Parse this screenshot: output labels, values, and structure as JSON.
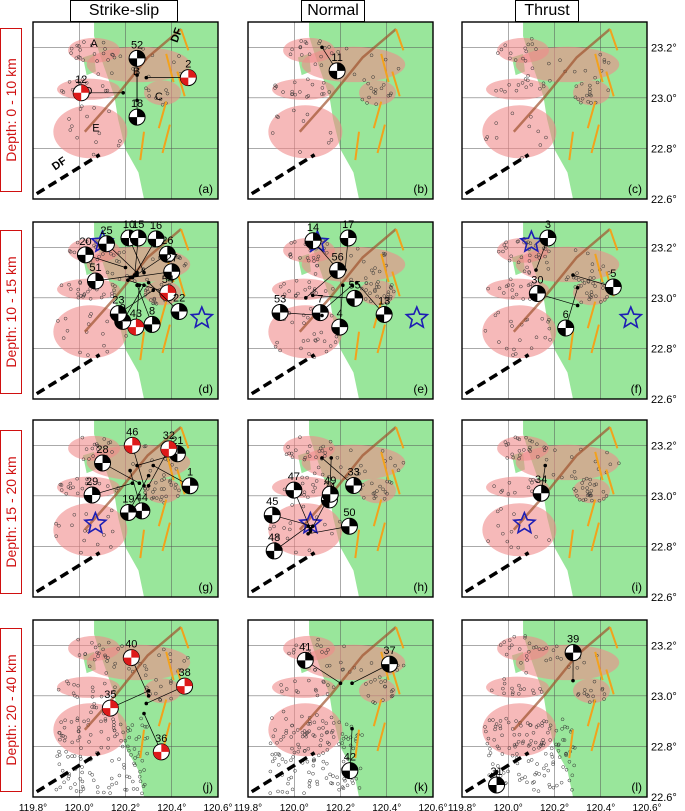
{
  "column_titles": [
    "Strike-slip",
    "Normal",
    "Thrust"
  ],
  "row_titles": [
    "Depth: 0 - 10 km",
    "Depth: 10 - 15 km",
    "Depth: 15 - 20 km",
    "Depth: 20 - 40 km"
  ],
  "panel_labels": [
    "(a)",
    "(b)",
    "(c)",
    "(d)",
    "(e)",
    "(f)",
    "(g)",
    "(h)",
    "(i)",
    "(j)",
    "(k)",
    "(l)"
  ],
  "lon_ticks": [
    "119.8°",
    "120.0°",
    "120.2°",
    "120.4°",
    "120.6°"
  ],
  "lat_ticks": [
    "23.2°",
    "23.0°",
    "22.8°",
    "22.6°"
  ],
  "fault_labels": [
    "DF",
    "DF"
  ],
  "zone_labels": [
    "A",
    "B",
    "C",
    "D",
    "E"
  ],
  "colors": {
    "land": "#99e69b",
    "sea": "#ffffff",
    "zone_fill": "#f08a8a",
    "fault_orange": "#f2a21c",
    "fault_brown": "#a0522d",
    "star": "#1e1eb4",
    "beachball_red": "#dd1a1a",
    "beachball_black": "#000000",
    "row_title_red": "#d01010"
  },
  "star_icon": "star-icon",
  "mechanisms": [
    {
      "panel": 0,
      "id": "2",
      "type": "red",
      "lon": 120.29,
      "lat": 23.08
    },
    {
      "panel": 0,
      "id": "18",
      "type": "black",
      "lon": 120.25,
      "lat": 23.09
    },
    {
      "panel": 0,
      "id": "12",
      "type": "red",
      "lon": 120.19,
      "lat": 23.02
    },
    {
      "panel": 0,
      "id": "52",
      "type": "black",
      "lon": 120.25,
      "lat": 22.99
    },
    {
      "panel": 1,
      "id": "11",
      "type": "black",
      "lon": 120.12,
      "lat": 23.2
    },
    {
      "panel": 3,
      "id": "51",
      "type": "black",
      "lon": 120.25,
      "lat": 23.09
    },
    {
      "panel": 3,
      "id": "20",
      "type": "black",
      "lon": 120.2,
      "lat": 23.12
    },
    {
      "panel": 3,
      "id": "25",
      "type": "black",
      "lon": 120.25,
      "lat": 23.1
    },
    {
      "panel": 3,
      "id": "10",
      "type": "black",
      "lon": 120.28,
      "lat": 23.1
    },
    {
      "panel": 3,
      "id": "15",
      "type": "black",
      "lon": 120.24,
      "lat": 23.09
    },
    {
      "panel": 3,
      "id": "16",
      "type": "black",
      "lon": 120.24,
      "lat": 23.09
    },
    {
      "panel": 3,
      "id": "26",
      "type": "black",
      "lon": 120.23,
      "lat": 23.08
    },
    {
      "panel": 3,
      "id": "27",
      "type": "black",
      "lon": 120.22,
      "lat": 23.08
    },
    {
      "panel": 3,
      "id": "54",
      "type": "red",
      "lon": 120.21,
      "lat": 23.07
    },
    {
      "panel": 3,
      "id": "22",
      "type": "black",
      "lon": 120.3,
      "lat": 23.06
    },
    {
      "panel": 3,
      "id": "8",
      "type": "black",
      "lon": 120.25,
      "lat": 23.05
    },
    {
      "panel": 3,
      "id": "43",
      "type": "red",
      "lon": 120.26,
      "lat": 23.05
    },
    {
      "panel": 3,
      "id": "9",
      "type": "black",
      "lon": 120.28,
      "lat": 23.05
    },
    {
      "panel": 3,
      "id": "23",
      "type": "black",
      "lon": 120.32,
      "lat": 23.03
    },
    {
      "panel": 4,
      "id": "14",
      "type": "black",
      "lon": 120.2,
      "lat": 23.1
    },
    {
      "panel": 4,
      "id": "17",
      "type": "black",
      "lon": 120.22,
      "lat": 23.11
    },
    {
      "panel": 4,
      "id": "56",
      "type": "black",
      "lon": 120.05,
      "lat": 23.0
    },
    {
      "panel": 4,
      "id": "55",
      "type": "black",
      "lon": 120.08,
      "lat": 23.01
    },
    {
      "panel": 4,
      "id": "13",
      "type": "black",
      "lon": 120.27,
      "lat": 23.06
    },
    {
      "panel": 4,
      "id": "4",
      "type": "black",
      "lon": 120.21,
      "lat": 23.05
    },
    {
      "panel": 4,
      "id": "7",
      "type": "black",
      "lon": 120.25,
      "lat": 23.05
    },
    {
      "panel": 4,
      "id": "53",
      "type": "black",
      "lon": 120.12,
      "lat": 22.93
    },
    {
      "panel": 5,
      "id": "3",
      "type": "black",
      "lon": 120.12,
      "lat": 23.11
    },
    {
      "panel": 5,
      "id": "5",
      "type": "black",
      "lon": 120.28,
      "lat": 23.09
    },
    {
      "panel": 5,
      "id": "6",
      "type": "black",
      "lon": 120.3,
      "lat": 23.04
    },
    {
      "panel": 5,
      "id": "30",
      "type": "black",
      "lon": 120.3,
      "lat": 22.97
    },
    {
      "panel": 6,
      "id": "21",
      "type": "black",
      "lon": 120.25,
      "lat": 23.12
    },
    {
      "panel": 6,
      "id": "1",
      "type": "black",
      "lon": 120.32,
      "lat": 23.12
    },
    {
      "panel": 6,
      "id": "44",
      "type": "black",
      "lon": 120.22,
      "lat": 23.1
    },
    {
      "panel": 6,
      "id": "19",
      "type": "black",
      "lon": 120.3,
      "lat": 23.08
    },
    {
      "panel": 6,
      "id": "29",
      "type": "black",
      "lon": 120.23,
      "lat": 23.05
    },
    {
      "panel": 6,
      "id": "28",
      "type": "black",
      "lon": 120.26,
      "lat": 23.05
    },
    {
      "panel": 6,
      "id": "46",
      "type": "red",
      "lon": 120.28,
      "lat": 23.04
    },
    {
      "panel": 6,
      "id": "32",
      "type": "red",
      "lon": 120.3,
      "lat": 23.04
    },
    {
      "panel": 7,
      "id": "33",
      "type": "black",
      "lon": 120.12,
      "lat": 23.15
    },
    {
      "panel": 7,
      "id": "24",
      "type": "black",
      "lon": 120.16,
      "lat": 23.15
    },
    {
      "panel": 7,
      "id": "48",
      "type": "black",
      "lon": 120.06,
      "lat": 22.88
    },
    {
      "panel": 7,
      "id": "45",
      "type": "black",
      "lon": 120.08,
      "lat": 22.88
    },
    {
      "panel": 7,
      "id": "47",
      "type": "black",
      "lon": 120.07,
      "lat": 22.87
    },
    {
      "panel": 7,
      "id": "49",
      "type": "black",
      "lon": 120.07,
      "lat": 22.86
    },
    {
      "panel": 7,
      "id": "50",
      "type": "black",
      "lon": 120.06,
      "lat": 22.85
    },
    {
      "panel": 8,
      "id": "34",
      "type": "black",
      "lon": 120.16,
      "lat": 23.12
    },
    {
      "panel": 9,
      "id": "35",
      "type": "red",
      "lon": 120.3,
      "lat": 23.02
    },
    {
      "panel": 9,
      "id": "40",
      "type": "red",
      "lon": 120.3,
      "lat": 23.0
    },
    {
      "panel": 9,
      "id": "38",
      "type": "red",
      "lon": 120.29,
      "lat": 22.97
    },
    {
      "panel": 9,
      "id": "36",
      "type": "red",
      "lon": 120.28,
      "lat": 22.93
    },
    {
      "panel": 10,
      "id": "41",
      "type": "black",
      "lon": 120.2,
      "lat": 23.05
    },
    {
      "panel": 10,
      "id": "37",
      "type": "black",
      "lon": 120.25,
      "lat": 23.05
    },
    {
      "panel": 10,
      "id": "42",
      "type": "black",
      "lon": 120.25,
      "lat": 22.87
    },
    {
      "panel": 11,
      "id": "39",
      "type": "black",
      "lon": 120.28,
      "lat": 23.06
    },
    {
      "panel": 11,
      "id": "31",
      "type": "black",
      "lon": 119.95,
      "lat": 22.7
    }
  ],
  "stars": [
    {
      "panel": 3,
      "lon": 120.1,
      "lat": 23.22
    },
    {
      "panel": 3,
      "lon": 120.53,
      "lat": 22.92
    },
    {
      "panel": 4,
      "lon": 120.1,
      "lat": 23.22
    },
    {
      "panel": 4,
      "lon": 120.53,
      "lat": 22.92
    },
    {
      "panel": 5,
      "lon": 120.1,
      "lat": 23.22
    },
    {
      "panel": 5,
      "lon": 120.53,
      "lat": 22.92
    },
    {
      "panel": 6,
      "lon": 120.07,
      "lat": 22.89
    },
    {
      "panel": 7,
      "lon": 120.07,
      "lat": 22.89
    },
    {
      "panel": 8,
      "lon": 120.07,
      "lat": 22.89
    }
  ]
}
